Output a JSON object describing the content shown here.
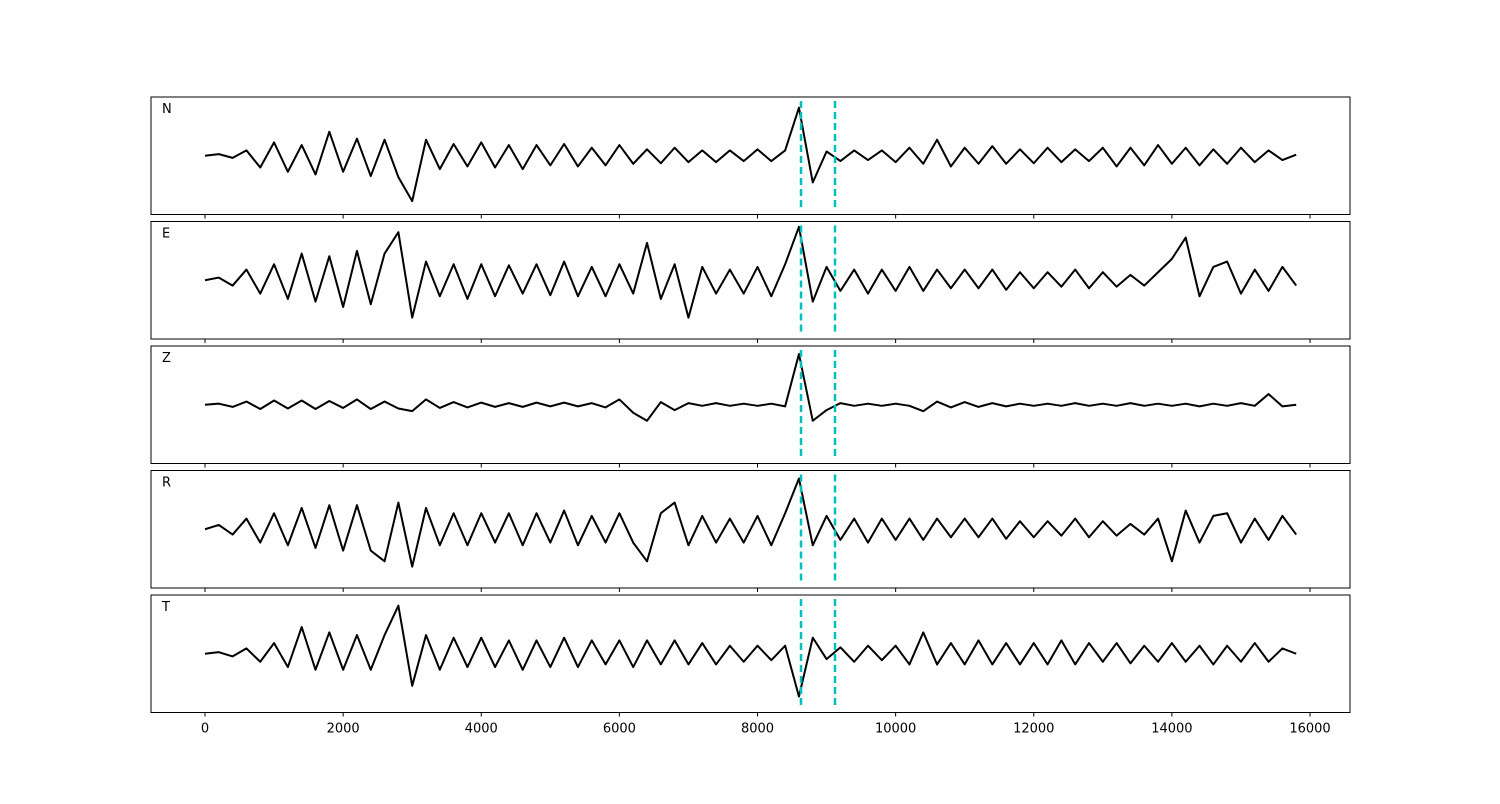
{
  "chart_data": {
    "type": "line",
    "xlim": [
      -782,
      16579
    ],
    "xticks": [
      0,
      2000,
      4000,
      6000,
      8000,
      10000,
      12000,
      14000,
      16000
    ],
    "ylim": [
      -1.1,
      1.1
    ],
    "vlines": [
      8630,
      9122
    ],
    "vline_color": "#00bfbf",
    "x": [
      0,
      200,
      400,
      600,
      800,
      1000,
      1200,
      1400,
      1600,
      1800,
      2000,
      2200,
      2400,
      2600,
      2800,
      3000,
      3200,
      3400,
      3600,
      3800,
      4000,
      4200,
      4400,
      4600,
      4800,
      5000,
      5200,
      5400,
      5600,
      5800,
      6000,
      6200,
      6400,
      6600,
      6800,
      7000,
      7200,
      7400,
      7600,
      7800,
      8000,
      8200,
      8400,
      8600,
      8800,
      9000,
      9200,
      9400,
      9600,
      9800,
      10000,
      10200,
      10400,
      10600,
      10800,
      11000,
      11200,
      11400,
      11600,
      11800,
      12000,
      12200,
      12400,
      12600,
      12800,
      13000,
      13200,
      13400,
      13600,
      13800,
      14000,
      14200,
      14400,
      14600,
      14800,
      15000,
      15200,
      15400,
      15600,
      15800
    ],
    "series": [
      {
        "name": "N",
        "color": "#000000",
        "values": [
          0,
          0.03,
          -0.04,
          0.1,
          -0.22,
          0.25,
          -0.3,
          0.2,
          -0.35,
          0.45,
          -0.3,
          0.32,
          -0.38,
          0.3,
          -0.4,
          -0.85,
          0.3,
          -0.25,
          0.22,
          -0.2,
          0.25,
          -0.22,
          0.2,
          -0.25,
          0.2,
          -0.18,
          0.22,
          -0.2,
          0.15,
          -0.18,
          0.2,
          -0.15,
          0.12,
          -0.14,
          0.15,
          -0.12,
          0.1,
          -0.12,
          0.1,
          -0.1,
          0.12,
          -0.1,
          0.1,
          0.9,
          -0.5,
          0.08,
          -0.1,
          0.1,
          -0.08,
          0.1,
          -0.12,
          0.15,
          -0.15,
          0.3,
          -0.2,
          0.15,
          -0.15,
          0.18,
          -0.15,
          0.12,
          -0.14,
          0.15,
          -0.12,
          0.12,
          -0.1,
          0.15,
          -0.2,
          0.15,
          -0.18,
          0.2,
          -0.15,
          0.15,
          -0.18,
          0.12,
          -0.15,
          0.15,
          -0.12,
          0.1,
          -0.08,
          0.02
        ]
      },
      {
        "name": "E",
        "color": "#000000",
        "values": [
          0,
          0.05,
          -0.1,
          0.2,
          -0.25,
          0.3,
          -0.35,
          0.5,
          -0.4,
          0.45,
          -0.5,
          0.55,
          -0.45,
          0.5,
          0.9,
          -0.7,
          0.35,
          -0.3,
          0.3,
          -0.35,
          0.3,
          -0.3,
          0.28,
          -0.25,
          0.3,
          -0.28,
          0.35,
          -0.3,
          0.25,
          -0.3,
          0.3,
          -0.25,
          0.7,
          -0.35,
          0.3,
          -0.7,
          0.25,
          -0.25,
          0.2,
          -0.25,
          0.25,
          -0.3,
          0.3,
          1.0,
          -0.4,
          0.25,
          -0.2,
          0.2,
          -0.25,
          0.2,
          -0.2,
          0.25,
          -0.2,
          0.2,
          -0.15,
          0.2,
          -0.15,
          0.2,
          -0.18,
          0.15,
          -0.15,
          0.15,
          -0.12,
          0.2,
          -0.15,
          0.15,
          -0.12,
          0.1,
          -0.1,
          0.15,
          0.4,
          0.8,
          -0.3,
          0.25,
          0.35,
          -0.25,
          0.2,
          -0.2,
          0.25,
          -0.1
        ]
      },
      {
        "name": "Z",
        "color": "#000000",
        "values": [
          0,
          0.02,
          -0.04,
          0.06,
          -0.08,
          0.08,
          -0.07,
          0.08,
          -0.08,
          0.07,
          -0.06,
          0.1,
          -0.08,
          0.06,
          -0.07,
          -0.12,
          0.1,
          -0.06,
          0.05,
          -0.05,
          0.04,
          -0.04,
          0.03,
          -0.04,
          0.04,
          -0.03,
          0.04,
          -0.03,
          0.03,
          -0.05,
          0.1,
          -0.15,
          -0.3,
          0.05,
          -0.1,
          0.03,
          -0.02,
          0.03,
          -0.02,
          0.02,
          -0.02,
          0.02,
          -0.03,
          0.95,
          -0.3,
          -0.1,
          0.03,
          -0.02,
          0.02,
          -0.02,
          0.02,
          -0.02,
          -0.12,
          0.06,
          -0.05,
          0.05,
          -0.04,
          0.03,
          -0.03,
          0.02,
          -0.02,
          0.02,
          -0.02,
          0.03,
          -0.02,
          0.02,
          -0.02,
          0.03,
          -0.02,
          0.02,
          -0.02,
          0.02,
          -0.03,
          0.02,
          -0.02,
          0.03,
          -0.02,
          0.2,
          -0.03,
          0.0
        ]
      },
      {
        "name": "R",
        "color": "#000000",
        "values": [
          0,
          0.08,
          -0.1,
          0.2,
          -0.25,
          0.3,
          -0.3,
          0.4,
          -0.35,
          0.45,
          -0.4,
          0.45,
          -0.4,
          -0.6,
          0.5,
          -0.7,
          0.4,
          -0.3,
          0.3,
          -0.3,
          0.3,
          -0.25,
          0.3,
          -0.3,
          0.3,
          -0.25,
          0.35,
          -0.3,
          0.25,
          -0.25,
          0.3,
          -0.25,
          -0.6,
          0.3,
          0.5,
          -0.3,
          0.25,
          -0.25,
          0.2,
          -0.25,
          0.25,
          -0.3,
          0.3,
          0.95,
          -0.3,
          0.25,
          -0.2,
          0.2,
          -0.25,
          0.2,
          -0.2,
          0.2,
          -0.2,
          0.2,
          -0.15,
          0.2,
          -0.15,
          0.2,
          -0.18,
          0.15,
          -0.15,
          0.15,
          -0.12,
          0.2,
          -0.15,
          0.15,
          -0.12,
          0.1,
          -0.1,
          0.2,
          -0.6,
          0.35,
          -0.25,
          0.25,
          0.3,
          -0.25,
          0.2,
          -0.2,
          0.25,
          -0.1
        ]
      },
      {
        "name": "T",
        "color": "#000000",
        "values": [
          0,
          0.03,
          -0.05,
          0.1,
          -0.15,
          0.2,
          -0.25,
          0.5,
          -0.3,
          0.4,
          -0.3,
          0.35,
          -0.3,
          0.35,
          0.9,
          -0.6,
          0.35,
          -0.3,
          0.3,
          -0.25,
          0.3,
          -0.25,
          0.25,
          -0.3,
          0.25,
          -0.25,
          0.3,
          -0.25,
          0.25,
          -0.2,
          0.25,
          -0.25,
          0.25,
          -0.2,
          0.25,
          -0.2,
          0.2,
          -0.2,
          0.15,
          -0.15,
          0.15,
          -0.12,
          0.15,
          -0.8,
          0.3,
          -0.1,
          0.12,
          -0.15,
          0.15,
          -0.12,
          0.15,
          -0.2,
          0.4,
          -0.2,
          0.2,
          -0.2,
          0.25,
          -0.2,
          0.2,
          -0.2,
          0.2,
          -0.2,
          0.25,
          -0.2,
          0.2,
          -0.15,
          0.2,
          -0.18,
          0.15,
          -0.15,
          0.2,
          -0.15,
          0.15,
          -0.2,
          0.15,
          -0.15,
          0.2,
          -0.15,
          0.1,
          0.0
        ]
      }
    ]
  }
}
